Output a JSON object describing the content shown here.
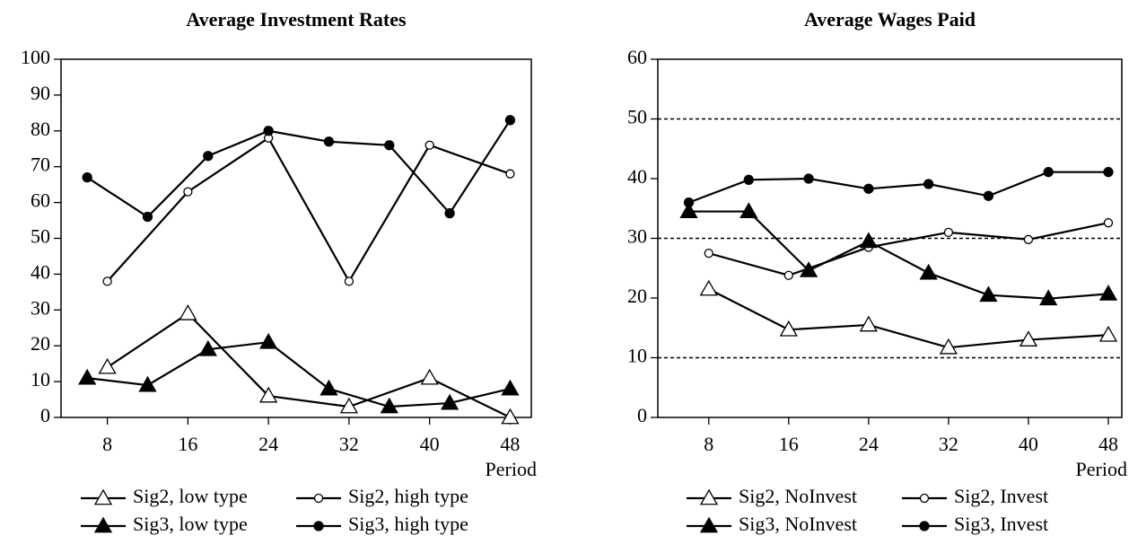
{
  "chart_data": [
    {
      "type": "line",
      "title": "Average Investment Rates",
      "x_label": "Period",
      "xlim": [
        3.4,
        50.1
      ],
      "xticks": [
        8,
        16,
        24,
        32,
        40,
        48
      ],
      "ylim": [
        0,
        100
      ],
      "yticks": [
        0,
        10,
        20,
        30,
        40,
        50,
        60,
        70,
        80,
        90,
        100
      ],
      "series": [
        {
          "name": "Sig2, low type",
          "color": "#000000",
          "marker": "triangle",
          "filled": false,
          "x": [
            8,
            16,
            24,
            32,
            40,
            48
          ],
          "values": [
            14,
            29,
            6,
            3,
            11,
            0
          ]
        },
        {
          "name": "Sig2, high type",
          "color": "#000000",
          "marker": "circle",
          "filled": false,
          "x": [
            8,
            16,
            24,
            32,
            40,
            48
          ],
          "values": [
            38,
            63,
            78,
            38,
            76,
            68
          ]
        },
        {
          "name": "Sig3, low type",
          "color": "#000000",
          "marker": "triangle",
          "filled": true,
          "x": [
            6,
            12,
            18,
            24,
            30,
            36,
            42,
            48
          ],
          "values": [
            11,
            9,
            19,
            21,
            8,
            3,
            4,
            8
          ]
        },
        {
          "name": "Sig3, high type",
          "color": "#000000",
          "marker": "circle",
          "filled": true,
          "x": [
            6,
            12,
            18,
            24,
            30,
            36,
            42,
            48
          ],
          "values": [
            67,
            56,
            73,
            80,
            77,
            76,
            57,
            83
          ]
        }
      ]
    },
    {
      "type": "line",
      "title": "Average Wages Paid",
      "x_label": "Period",
      "xlim": [
        2.9,
        49.35
      ],
      "xticks": [
        8,
        16,
        24,
        32,
        40,
        48
      ],
      "ylim": [
        0,
        60
      ],
      "yticks": [
        0,
        10,
        20,
        30,
        40,
        50,
        60
      ],
      "grid_lines": [
        10,
        30,
        50
      ],
      "series": [
        {
          "name": "Sig2, NoInvest",
          "color": "#000000",
          "marker": "triangle",
          "filled": false,
          "x": [
            8,
            16,
            24,
            32,
            40,
            48
          ],
          "values": [
            21.5,
            14.7,
            15.5,
            11.7,
            13,
            13.8
          ]
        },
        {
          "name": "Sig2, Invest",
          "color": "#000000",
          "marker": "circle",
          "filled": false,
          "x": [
            8,
            16,
            24,
            32,
            40,
            48
          ],
          "values": [
            27.5,
            23.8,
            28.5,
            31,
            29.8,
            32.6
          ]
        },
        {
          "name": "Sig3, NoInvest",
          "color": "#000000",
          "marker": "triangle",
          "filled": true,
          "x": [
            6,
            12,
            18,
            24,
            30,
            36,
            42,
            48
          ],
          "values": [
            34.5,
            34.5,
            24.6,
            29.5,
            24.2,
            20.5,
            19.9,
            20.7
          ]
        },
        {
          "name": "Sig3, Invest",
          "color": "#000000",
          "marker": "circle",
          "filled": true,
          "x": [
            6,
            12,
            18,
            24,
            30,
            36,
            42,
            48
          ],
          "values": [
            36,
            39.8,
            40,
            38.3,
            39.1,
            37.1,
            41.1,
            41.1
          ]
        }
      ]
    }
  ]
}
